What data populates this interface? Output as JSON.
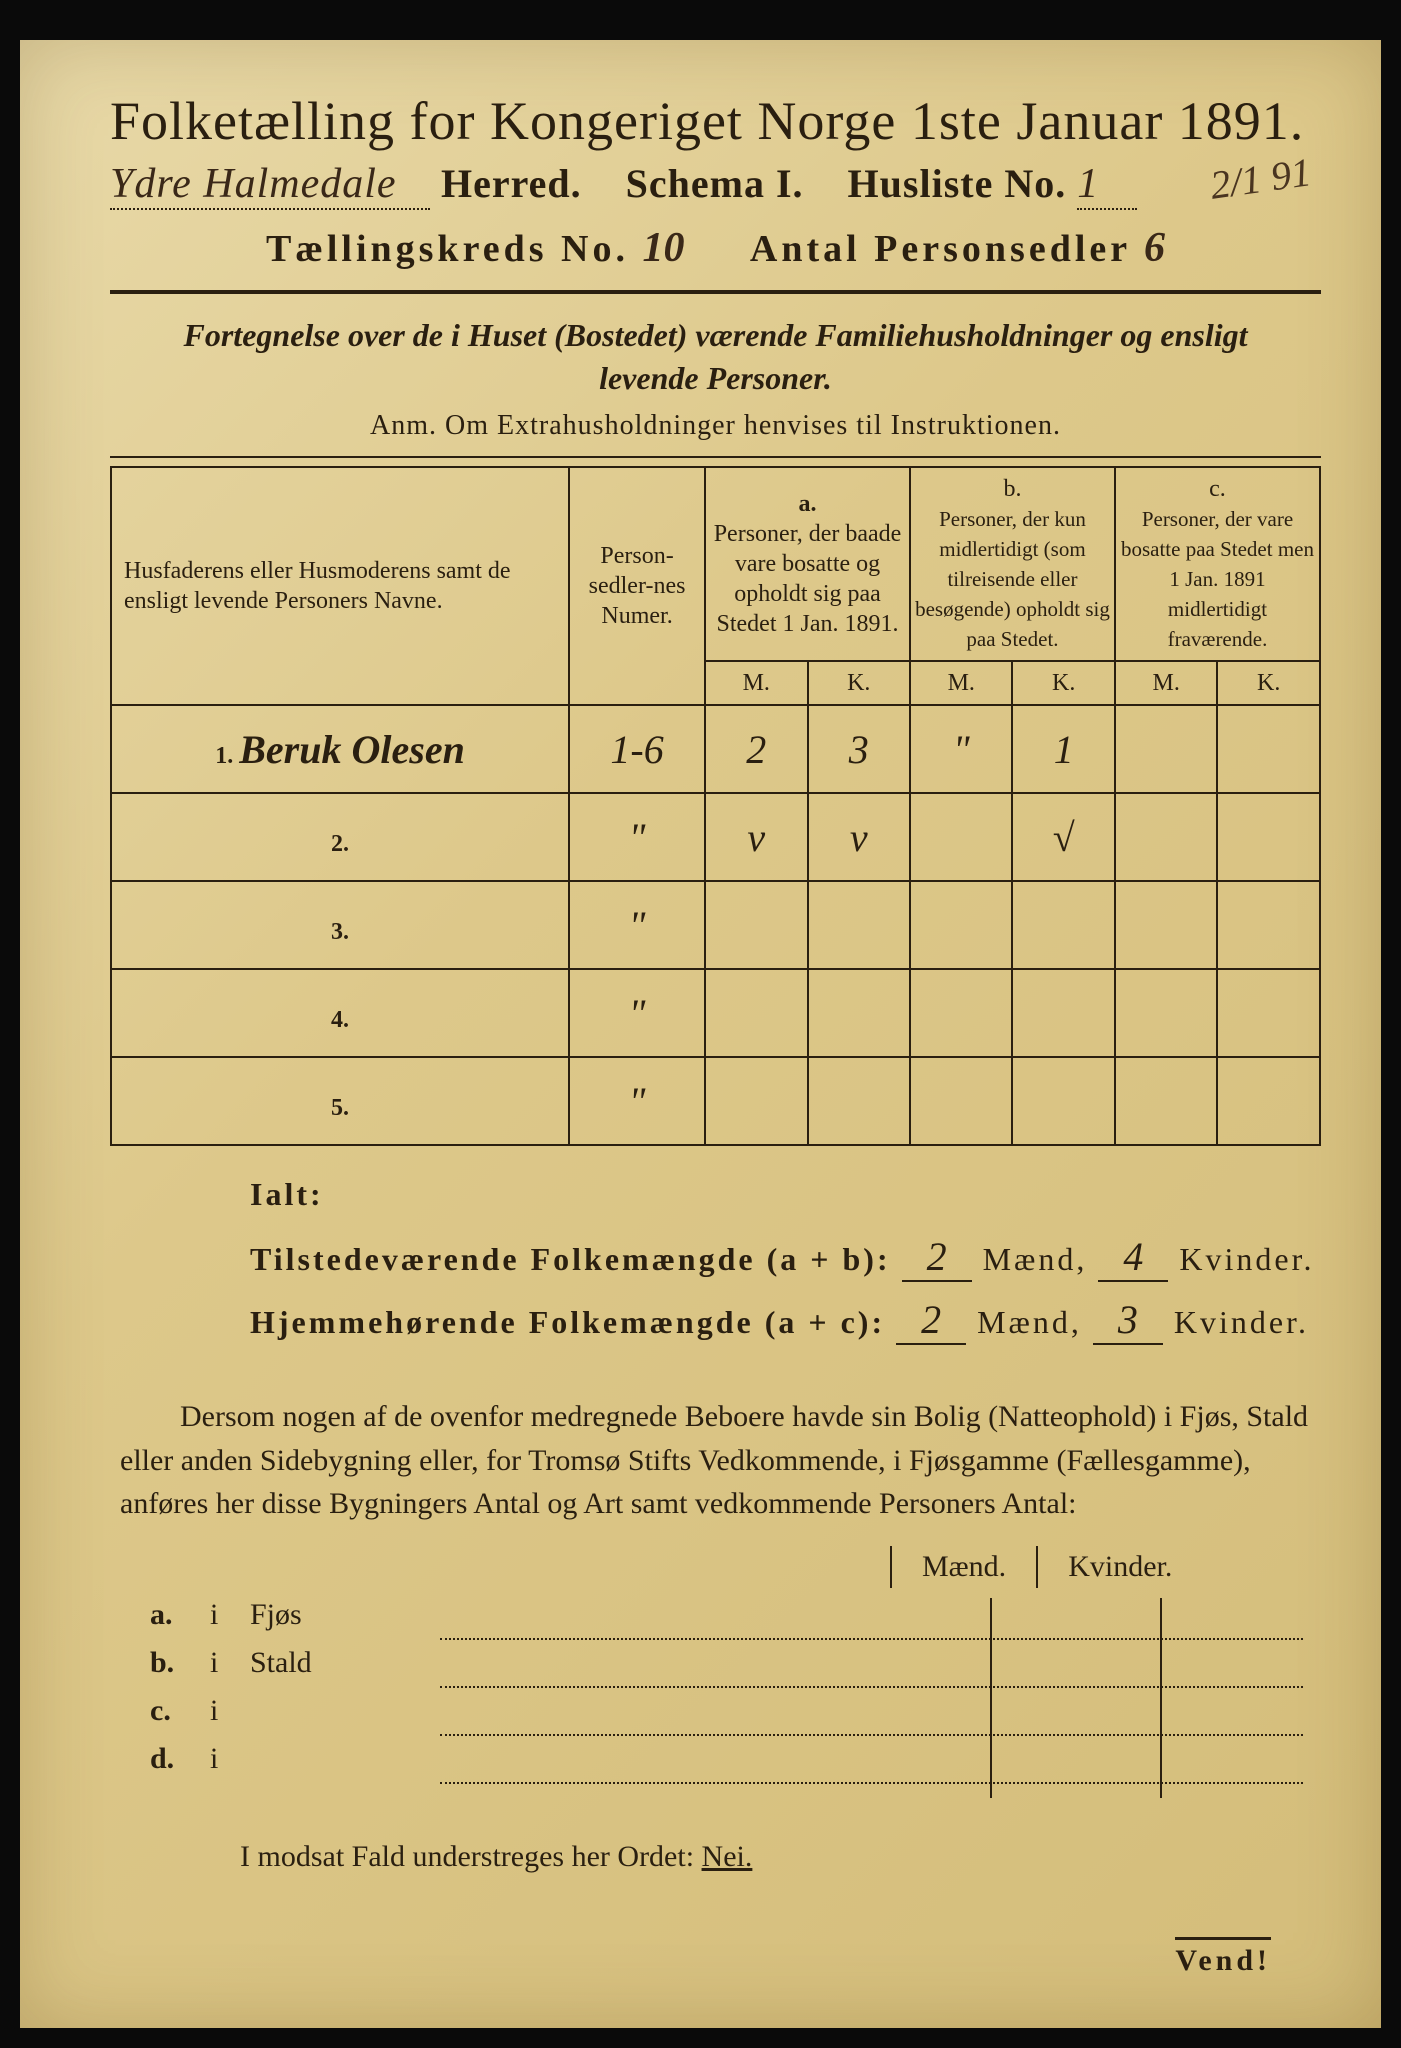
{
  "colors": {
    "paper_bg_start": "#e8d9a8",
    "paper_bg_end": "#d4bd7a",
    "ink": "#2a1f10",
    "frame": "#0a0a0a",
    "handwriting": "#3a2818"
  },
  "typography": {
    "title_fontsize": 54,
    "subtitle_fontsize": 40,
    "body_fontsize": 30,
    "table_fontsize": 24,
    "handwriting_fontsize": 42
  },
  "header": {
    "title": "Folketælling for Kongeriget Norge 1ste Januar 1891.",
    "herred_hand": "Ydre Halmedale",
    "herred_label": "Herred.",
    "schema": "Schema I.",
    "husliste_label": "Husliste No.",
    "husliste_no": "1",
    "margin_note": "2/1 91",
    "kreds_label": "Tællingskreds No.",
    "kreds_no": "10",
    "antal_label": "Antal Personsedler",
    "antal_no": "6"
  },
  "description": {
    "line1": "Fortegnelse over de i Huset (Bostedet) værende Familiehusholdninger og ensligt",
    "line2": "levende Personer.",
    "anm": "Anm.   Om Extrahusholdninger henvises til Instruktionen."
  },
  "table": {
    "col_names": "Husfaderens eller Husmoderens samt de ensligt levende Personers Navne.",
    "col_numer": "Person-sedler-nes Numer.",
    "col_a_label": "a.",
    "col_a": "Personer, der baade vare bosatte og opholdt sig paa Stedet 1 Jan. 1891.",
    "col_b_label": "b.",
    "col_b": "Personer, der kun midlertidigt (som tilreisende eller besøgende) opholdt sig paa Stedet.",
    "col_c_label": "c.",
    "col_c": "Personer, der vare bosatte paa Stedet men 1 Jan. 1891 midlertidigt fraværende.",
    "m": "M.",
    "k": "K.",
    "rows": [
      {
        "n": "1.",
        "name": "Beruk Olesen",
        "numer": "1-6",
        "am": "2",
        "ak": "3",
        "bm": "\"",
        "bk": "1",
        "cm": "",
        "ck": ""
      },
      {
        "n": "2.",
        "name": "",
        "numer": "\"",
        "am": "v",
        "ak": "v",
        "bm": "",
        "bk": "√",
        "cm": "",
        "ck": ""
      },
      {
        "n": "3.",
        "name": "",
        "numer": "\"",
        "am": "",
        "ak": "",
        "bm": "",
        "bk": "",
        "cm": "",
        "ck": ""
      },
      {
        "n": "4.",
        "name": "",
        "numer": "\"",
        "am": "",
        "ak": "",
        "bm": "",
        "bk": "",
        "cm": "",
        "ck": ""
      },
      {
        "n": "5.",
        "name": "",
        "numer": "\"",
        "am": "",
        "ak": "",
        "bm": "",
        "bk": "",
        "cm": "",
        "ck": ""
      }
    ]
  },
  "totals": {
    "ialt": "Ialt:",
    "present_label": "Tilstedeværende Folkemængde (a + b):",
    "present_m": "2",
    "present_k": "4",
    "home_label": "Hjemmehørende Folkemængde (a + c):",
    "home_m": "2",
    "home_k": "3",
    "maend": "Mænd,",
    "kvinder": "Kvinder."
  },
  "sidebuilding": {
    "para": "Dersom nogen af de ovenfor medregnede Beboere havde sin Bolig (Natteophold) i Fjøs, Stald eller anden Sidebygning eller, for Tromsø Stifts Vedkommende, i Fjøsgamme (Fællesgamme), anføres her disse Bygningers Antal og Art samt vedkommende Personers Antal:",
    "head_m": "Mænd.",
    "head_k": "Kvinder.",
    "rows": [
      {
        "l": "a.",
        "i": "i",
        "name": "Fjøs"
      },
      {
        "l": "b.",
        "i": "i",
        "name": "Stald"
      },
      {
        "l": "c.",
        "i": "i",
        "name": ""
      },
      {
        "l": "d.",
        "i": "i",
        "name": ""
      }
    ]
  },
  "footer": {
    "line": "I modsat Fald understreges her Ordet:",
    "nei": "Nei.",
    "vend": "Vend!"
  }
}
